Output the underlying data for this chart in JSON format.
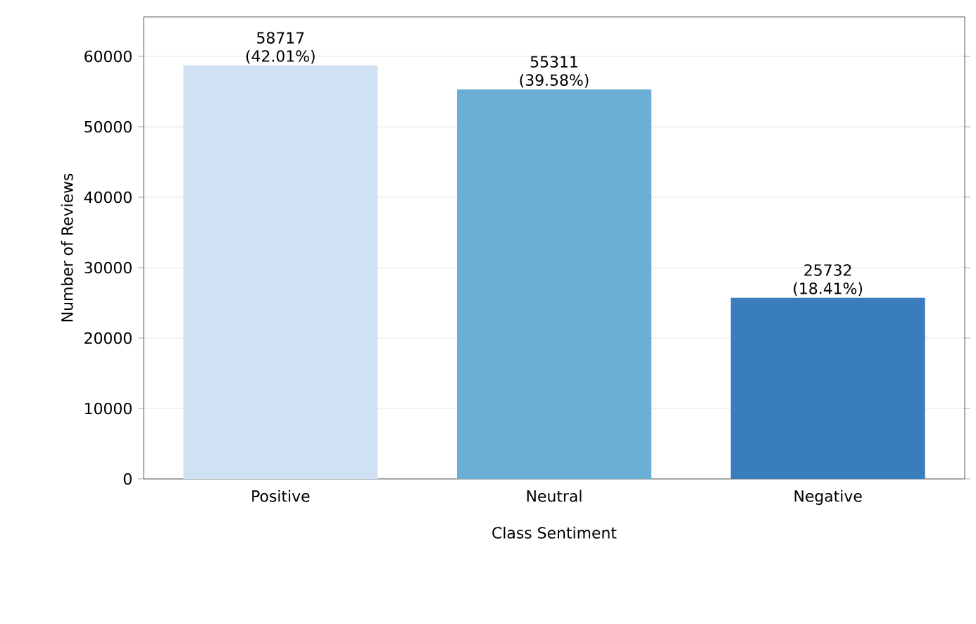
{
  "chart_data": {
    "type": "bar",
    "xlabel": "Class Sentiment",
    "ylabel": "Number of Reviews",
    "categories": [
      "Positive",
      "Neutral",
      "Negative"
    ],
    "values": [
      58717,
      55311,
      25732
    ],
    "colors": [
      "#cfe1f2",
      "#6baed6",
      "#3a7dbd"
    ],
    "value_labels": [
      "58717 (42.01%)",
      "55311 (39.58%)",
      "25732 (18.41%)"
    ],
    "ylim": [
      0,
      65600
    ],
    "yticks": [
      0,
      10000,
      20000,
      30000,
      40000,
      50000,
      60000
    ],
    "grid": "y"
  }
}
